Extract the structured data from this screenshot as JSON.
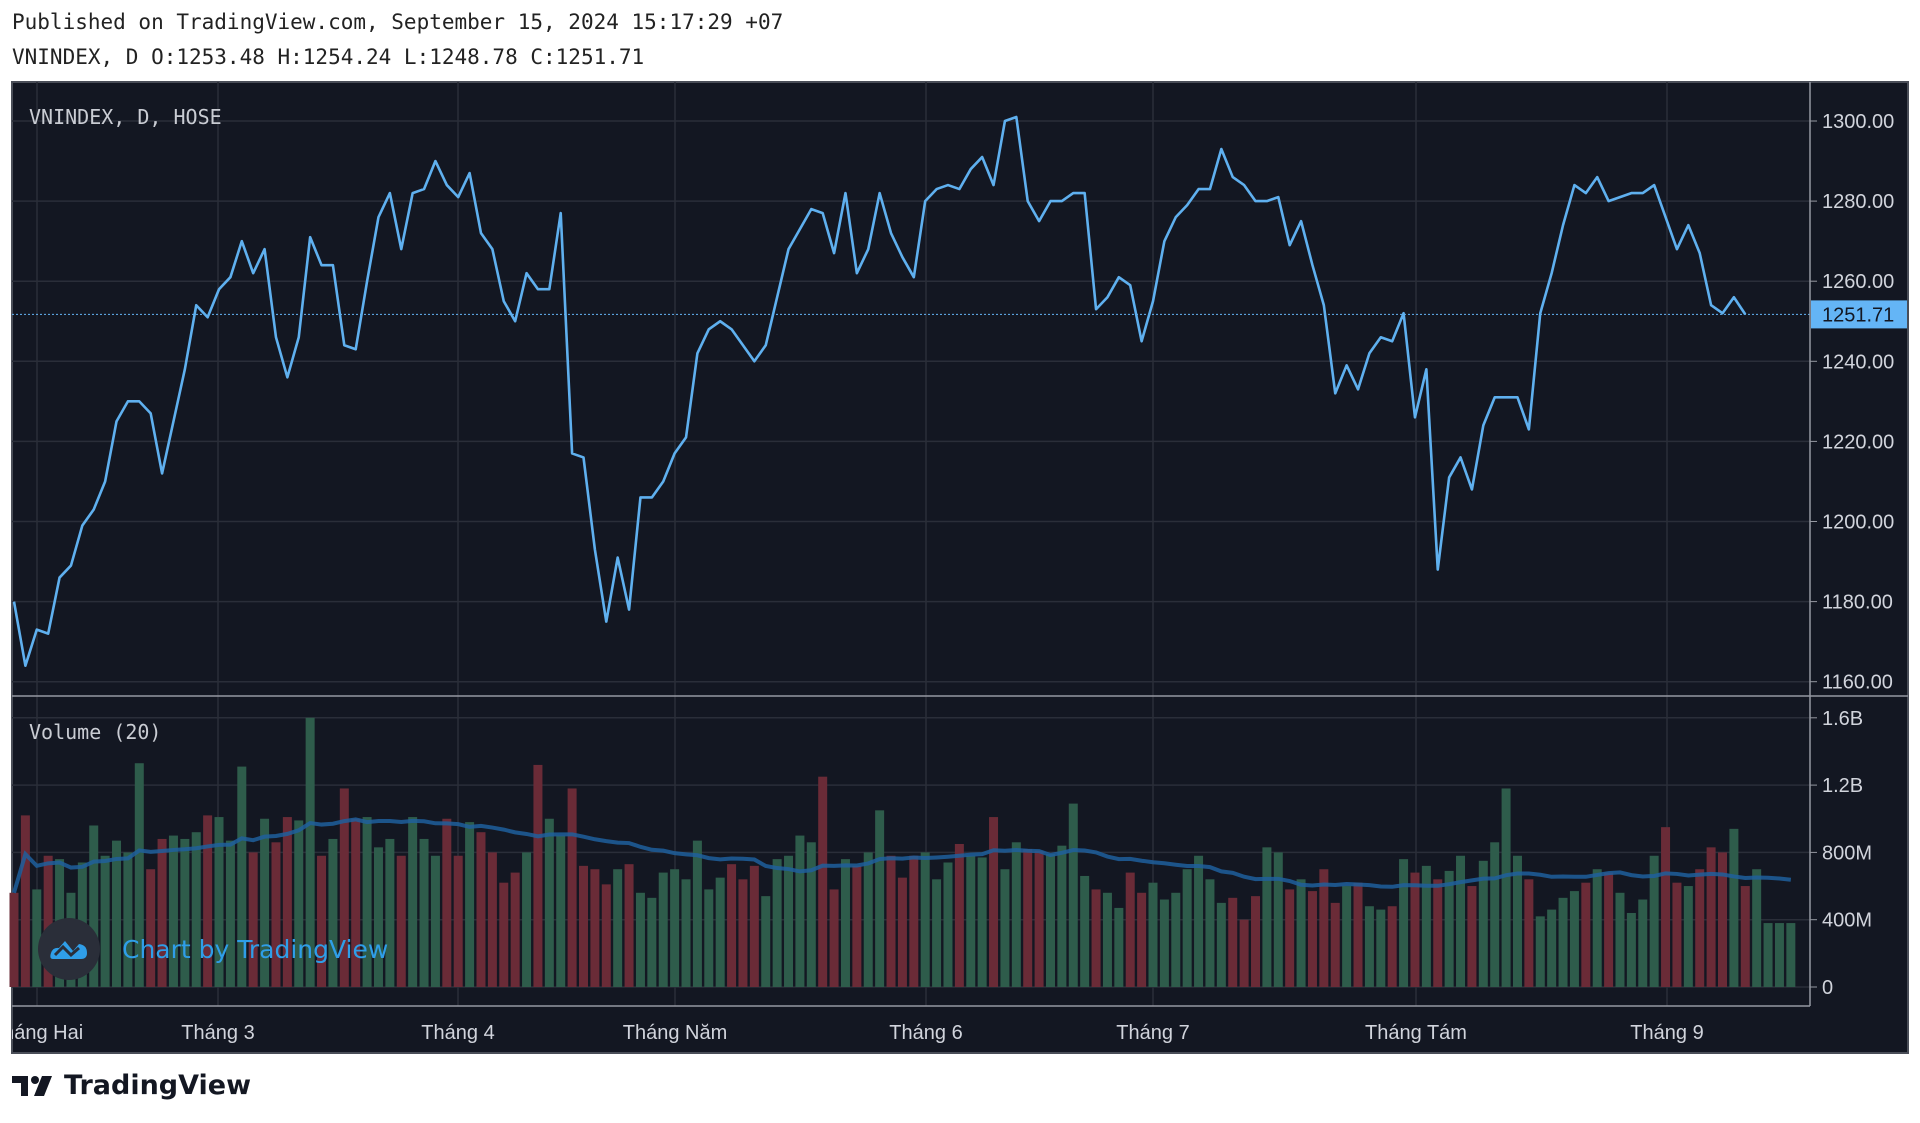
{
  "header": {
    "published": "Published on TradingView.com, September 15, 2024 15:17:29 +07",
    "ohlc": "VNINDEX, D O:1253.48 H:1254.24 L:1248.78 C:1251.71"
  },
  "colors": {
    "background": "#131722",
    "line": "#5fb0ef",
    "volume_up": "#2e5c4b",
    "volume_down": "#6a2b37",
    "volume_ma": "#1f5f9c",
    "last_price_badge": "#64b5f6"
  },
  "watermark": {
    "text": "Chart by TradingView",
    "icon": "tradingview-cloud-icon"
  },
  "footer": {
    "logo_text": "TradingView",
    "icon": "tradingview-logo-icon"
  },
  "chart_data": [
    {
      "type": "line",
      "title": "VNINDEX, D, HOSE",
      "last_value": "1251.71",
      "y_ticks": [
        "1300.00",
        "1280.00",
        "1260.00",
        "1240.00",
        "1220.00",
        "1200.00",
        "1180.00",
        "1160.00"
      ],
      "ylim": [
        1156,
        1308
      ],
      "x_ticks": [
        "Tháng Hai",
        "Tháng 3",
        "Tháng 4",
        "Tháng Năm",
        "Tháng 6",
        "Tháng 7",
        "Tháng Tám",
        "Tháng 9"
      ],
      "grid": true,
      "values": [
        1180,
        1164,
        1173,
        1172,
        1186,
        1189,
        1199,
        1203,
        1210,
        1225,
        1230,
        1230,
        1227,
        1212,
        1225,
        1238,
        1254,
        1251,
        1258,
        1261,
        1270,
        1262,
        1268,
        1246,
        1236,
        1246,
        1271,
        1264,
        1264,
        1244,
        1243,
        1260,
        1276,
        1282,
        1268,
        1282,
        1283,
        1290,
        1284,
        1281,
        1287,
        1272,
        1268,
        1255,
        1250,
        1262,
        1258,
        1258,
        1277,
        1217,
        1216,
        1193,
        1175,
        1191,
        1178,
        1206,
        1206,
        1210,
        1217,
        1221,
        1242,
        1248,
        1250,
        1248,
        1244,
        1240,
        1244,
        1256,
        1268,
        1273,
        1278,
        1277,
        1267,
        1282,
        1262,
        1268,
        1282,
        1272,
        1266,
        1261,
        1280,
        1283,
        1284,
        1283,
        1288,
        1291,
        1284,
        1300,
        1301,
        1280,
        1275,
        1280,
        1280,
        1282,
        1282,
        1253,
        1256,
        1261,
        1259,
        1245,
        1255,
        1270,
        1276,
        1279,
        1283,
        1283,
        1293,
        1286,
        1284,
        1280,
        1280,
        1281,
        1269,
        1275,
        1264,
        1254,
        1232,
        1239,
        1233,
        1242,
        1246,
        1245,
        1252,
        1226,
        1238,
        1188,
        1211,
        1216,
        1208,
        1224,
        1231,
        1231,
        1231,
        1223,
        1252,
        1262,
        1274,
        1284,
        1282,
        1286,
        1280,
        1281,
        1282,
        1282,
        1284,
        1276,
        1268,
        1274,
        1267,
        1254,
        1252,
        1256,
        1251.71
      ]
    },
    {
      "type": "bar",
      "title": "Volume (20)",
      "y_ticks": [
        "1.6B",
        "1.2B",
        "800M",
        "400M",
        "0"
      ],
      "ylim_millions": [
        0,
        1600
      ],
      "values_millions": [
        560,
        1020,
        580,
        780,
        760,
        560,
        740,
        960,
        780,
        870,
        800,
        1330,
        700,
        880,
        900,
        880,
        920,
        1020,
        1010,
        870,
        1310,
        800,
        1000,
        860,
        1010,
        990,
        1600,
        780,
        880,
        1180,
        1000,
        1010,
        830,
        880,
        780,
        1010,
        880,
        780,
        1000,
        780,
        980,
        920,
        800,
        620,
        680,
        800,
        1320,
        1000,
        900,
        1180,
        720,
        700,
        610,
        700,
        730,
        560,
        530,
        680,
        700,
        640,
        870,
        580,
        650,
        730,
        640,
        720,
        540,
        760,
        780,
        900,
        860,
        1250,
        580,
        760,
        720,
        800,
        1050,
        780,
        650,
        780,
        800,
        640,
        740,
        850,
        780,
        770,
        1010,
        700,
        860,
        820,
        810,
        790,
        840,
        1090,
        660,
        580,
        560,
        470,
        680,
        560,
        620,
        520,
        560,
        700,
        780,
        640,
        500,
        530,
        400,
        540,
        830,
        800,
        580,
        640,
        570,
        700,
        500,
        600,
        620,
        480,
        460,
        480,
        760,
        680,
        720,
        640,
        690,
        780,
        600,
        750,
        860,
        1180,
        780,
        640,
        420,
        460,
        530,
        570,
        620,
        700,
        680,
        560,
        440,
        520,
        780,
        950,
        620,
        600,
        700,
        830,
        800,
        940,
        600,
        700,
        380,
        380,
        380
      ]
    }
  ]
}
